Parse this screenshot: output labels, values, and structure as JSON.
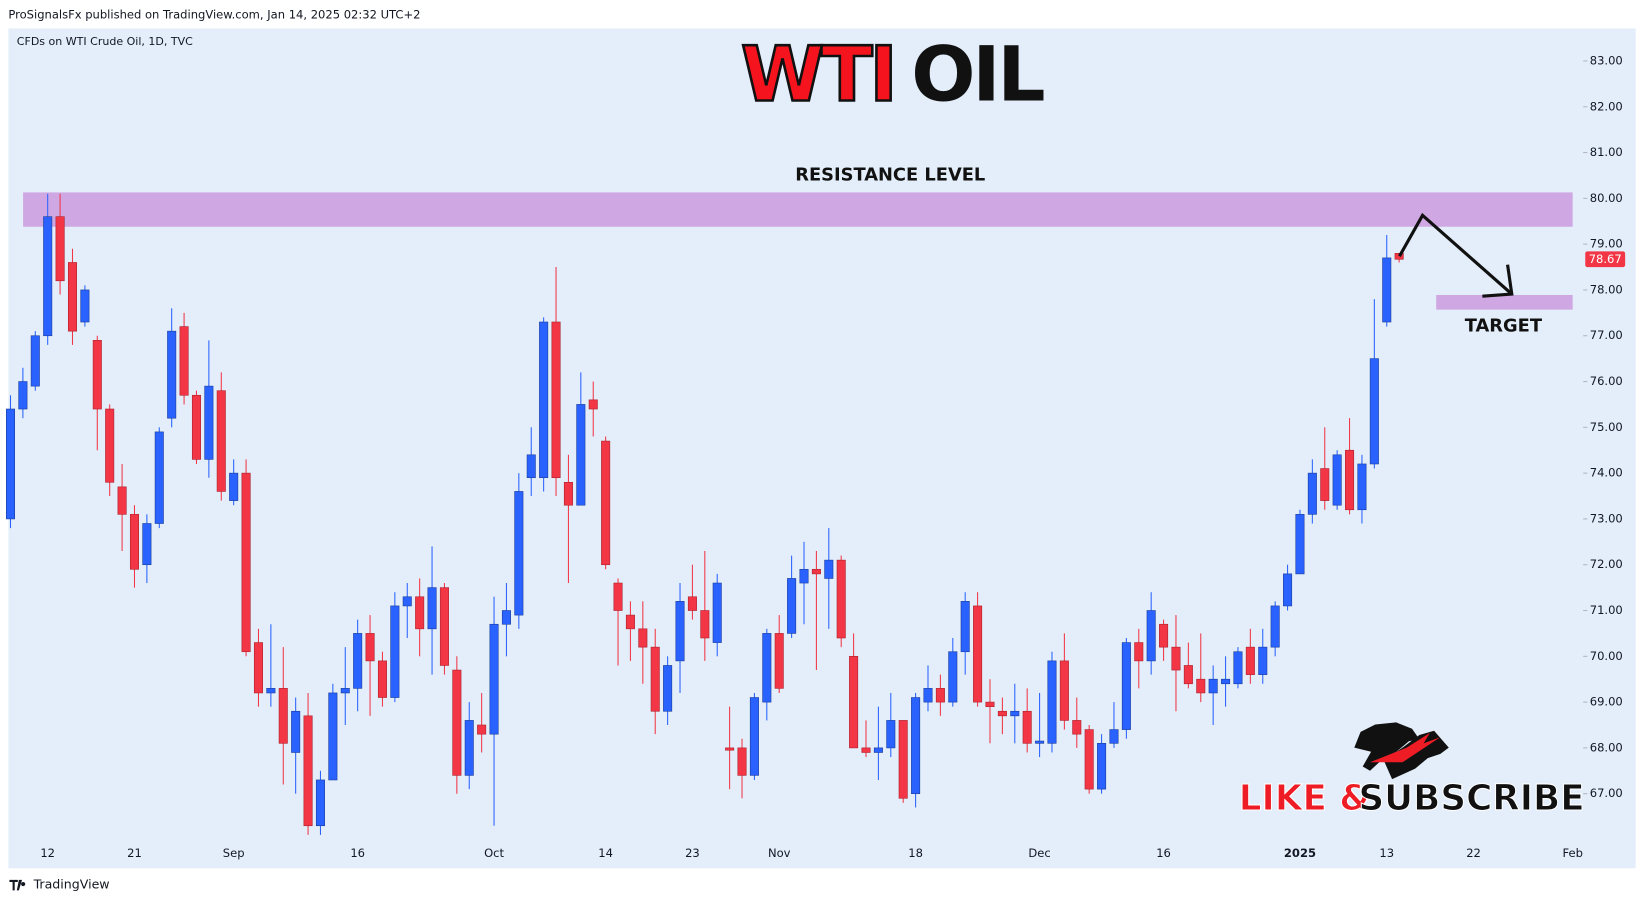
{
  "header": "ProSignalsFx published on TradingView.com, Jan 14, 2025 02:32 UTC+2",
  "footer": "TradingView",
  "chart_data": {
    "type": "candlestick",
    "symbol": "CFDs on WTI Crude Oil, 1D, TVC",
    "title": [
      "WTI",
      "OIL"
    ],
    "title_colors": [
      "#f5141e",
      "#111111"
    ],
    "cta": [
      "LIKE &",
      "SUBSCRIBE"
    ],
    "cta_colors": [
      "#ee1c25",
      "#111111"
    ],
    "up_color": "#2962ff",
    "down_color": "#f23645",
    "zones": [
      {
        "label": "RESISTANCE LEVEL",
        "range": [
          79.38,
          80.13
        ],
        "color": "#cfa8e3"
      },
      {
        "label": "TARGET",
        "range": [
          77.57,
          77.89
        ],
        "color": "#cfa8e3"
      }
    ],
    "categories": [
      null,
      null,
      null,
      "12",
      null,
      null,
      null,
      null,
      null,
      null,
      "21",
      null,
      null,
      null,
      null,
      null,
      null,
      null,
      "Sep",
      null,
      null,
      null,
      null,
      null,
      null,
      null,
      null,
      null,
      "16",
      null,
      null,
      null,
      null,
      null,
      null,
      null,
      null,
      null,
      null,
      "Oct",
      null,
      null,
      null,
      null,
      null,
      null,
      null,
      null,
      "14",
      null,
      null,
      null,
      null,
      null,
      null,
      "23",
      null,
      null,
      null,
      null,
      null,
      null,
      "Nov",
      null,
      null,
      null,
      null,
      null,
      null,
      null,
      null,
      null,
      null,
      "18",
      null,
      null,
      null,
      null,
      null,
      null,
      null,
      null,
      null,
      "Dec",
      null,
      null,
      null,
      null,
      null,
      null,
      null,
      null,
      null,
      "16",
      null,
      null,
      null,
      null,
      null,
      null,
      null,
      null,
      null,
      null,
      "2025",
      null,
      null,
      null,
      null,
      null,
      null,
      "13",
      null,
      null,
      null,
      null,
      null,
      null,
      "22",
      null,
      null,
      null,
      null,
      null,
      null,
      null,
      "Feb"
    ],
    "open": [
      73.0,
      75.4,
      75.9,
      77.0,
      79.6,
      78.6,
      77.3,
      76.9,
      75.4,
      73.7,
      73.1,
      72.0,
      72.9,
      75.2,
      77.2,
      75.7,
      74.3,
      75.8,
      73.4,
      74.0,
      70.3,
      69.2,
      69.3,
      67.9,
      68.7,
      66.3,
      67.3,
      69.2,
      69.3,
      70.5,
      69.9,
      69.1,
      71.1,
      71.3,
      70.6,
      71.5,
      69.7,
      67.4,
      68.5,
      68.3,
      70.7,
      70.9,
      73.9,
      73.9,
      77.3,
      73.8,
      73.3,
      75.6,
      74.7,
      71.6,
      70.9,
      70.6,
      70.2,
      68.8,
      69.9,
      71.3,
      71.0,
      70.3,
      68.0,
      68.0,
      67.4,
      69.0,
      70.5,
      70.5,
      71.6,
      71.9,
      71.7,
      72.1,
      70.0,
      68.0,
      67.9,
      68.0,
      68.6,
      67.0,
      69.0,
      69.3,
      69.0,
      70.1,
      71.1,
      69.0,
      68.8,
      68.7,
      68.8,
      68.1,
      68.1,
      69.9,
      68.6,
      68.4,
      67.1,
      68.1,
      68.4,
      70.3,
      69.9,
      70.7,
      70.2,
      69.8,
      69.5,
      69.2,
      69.4,
      69.4,
      70.2,
      69.6,
      70.2,
      71.1,
      71.8,
      73.1,
      74.1,
      73.3,
      74.5,
      73.2,
      74.2,
      77.3,
      78.8,
      null,
      null,
      null,
      null,
      null,
      null,
      null,
      null,
      null,
      null,
      null,
      null,
      null,
      null
    ],
    "high": [
      75.7,
      76.3,
      77.1,
      80.1,
      80.1,
      78.9,
      78.1,
      77.0,
      75.5,
      74.2,
      73.3,
      73.1,
      75.0,
      77.6,
      77.5,
      75.8,
      76.9,
      76.2,
      74.3,
      74.3,
      70.6,
      70.7,
      70.2,
      69.1,
      69.2,
      67.5,
      69.4,
      70.2,
      70.8,
      70.9,
      70.1,
      71.4,
      71.6,
      71.7,
      72.4,
      71.6,
      70.0,
      69.0,
      69.2,
      71.3,
      71.6,
      74.0,
      75.0,
      77.4,
      78.5,
      74.4,
      76.2,
      76.0,
      74.8,
      71.7,
      71.2,
      71.2,
      70.6,
      70.0,
      71.6,
      72.0,
      72.3,
      71.8,
      68.9,
      68.2,
      69.2,
      70.6,
      70.9,
      72.2,
      72.5,
      72.3,
      72.8,
      72.2,
      70.5,
      68.6,
      68.9,
      69.2,
      68.6,
      69.2,
      69.8,
      69.6,
      70.4,
      71.4,
      71.4,
      69.5,
      69.1,
      69.4,
      69.3,
      69.2,
      70.1,
      70.5,
      69.1,
      68.5,
      68.3,
      69.0,
      70.4,
      70.6,
      71.4,
      70.8,
      70.9,
      70.3,
      70.5,
      69.8,
      70.0,
      70.2,
      70.6,
      70.6,
      71.2,
      72.0,
      73.2,
      74.3,
      75.0,
      74.5,
      75.2,
      74.4,
      77.8,
      79.2,
      78.8,
      null,
      null,
      null,
      null,
      null,
      null,
      null,
      null,
      null,
      null,
      null,
      null,
      null,
      null
    ],
    "low": [
      72.8,
      75.2,
      75.8,
      76.8,
      77.9,
      76.8,
      77.2,
      74.5,
      73.5,
      72.3,
      71.5,
      71.6,
      72.8,
      75.0,
      75.5,
      74.2,
      73.9,
      73.4,
      73.3,
      70.0,
      68.9,
      68.9,
      67.2,
      67.0,
      66.1,
      66.1,
      67.3,
      68.5,
      68.8,
      68.7,
      68.9,
      69.0,
      70.4,
      70.0,
      69.6,
      69.6,
      67.0,
      67.1,
      67.9,
      66.3,
      70.0,
      70.6,
      73.5,
      73.6,
      73.5,
      71.6,
      73.3,
      74.8,
      71.9,
      69.8,
      69.9,
      69.4,
      68.3,
      68.5,
      69.2,
      70.8,
      69.9,
      70.0,
      67.1,
      66.9,
      67.3,
      68.6,
      69.2,
      70.4,
      70.7,
      69.7,
      70.6,
      70.2,
      68.0,
      67.8,
      67.3,
      67.8,
      66.8,
      66.7,
      68.8,
      68.7,
      68.9,
      69.6,
      68.9,
      68.1,
      68.3,
      68.1,
      67.9,
      67.8,
      67.9,
      68.4,
      68.0,
      67.0,
      67.0,
      68.0,
      68.2,
      69.3,
      69.6,
      69.9,
      68.8,
      69.3,
      69.0,
      68.5,
      68.9,
      69.3,
      69.4,
      69.4,
      70.0,
      71.0,
      71.8,
      72.9,
      73.2,
      73.2,
      73.1,
      72.9,
      74.1,
      77.2,
      78.6,
      null,
      null,
      null,
      null,
      null,
      null,
      null,
      null,
      null,
      null,
      null,
      null,
      null,
      null
    ],
    "close": [
      75.4,
      76.0,
      77.0,
      79.6,
      78.2,
      77.1,
      78.0,
      75.4,
      73.8,
      73.1,
      71.9,
      72.9,
      74.9,
      77.1,
      75.7,
      74.3,
      75.9,
      73.6,
      74.0,
      70.1,
      69.2,
      69.3,
      68.1,
      68.8,
      66.3,
      67.3,
      69.2,
      69.3,
      70.5,
      69.9,
      69.1,
      71.1,
      71.3,
      70.6,
      71.5,
      69.8,
      67.4,
      68.6,
      68.3,
      70.7,
      71.0,
      73.6,
      74.4,
      77.3,
      73.9,
      73.3,
      75.5,
      75.4,
      72.0,
      71.0,
      70.6,
      70.2,
      68.8,
      69.8,
      71.2,
      71.0,
      70.4,
      71.6,
      67.95,
      67.4,
      69.1,
      70.5,
      69.3,
      71.7,
      71.9,
      71.8,
      72.1,
      70.4,
      68.0,
      67.9,
      68.0,
      68.6,
      66.9,
      69.1,
      69.3,
      69.0,
      70.1,
      71.2,
      69.0,
      68.9,
      68.7,
      68.8,
      68.1,
      68.15,
      69.9,
      68.6,
      68.3,
      67.1,
      68.1,
      68.4,
      70.3,
      69.9,
      71.0,
      70.2,
      69.7,
      69.4,
      69.2,
      69.5,
      69.5,
      70.1,
      69.6,
      70.2,
      71.1,
      71.8,
      73.1,
      74.0,
      73.4,
      74.4,
      73.2,
      74.2,
      76.5,
      78.7,
      78.67,
      null,
      null,
      null,
      null,
      null,
      null,
      null,
      null,
      null,
      null,
      null,
      null,
      null,
      null
    ],
    "ylim": [
      65.37,
      83.71
    ],
    "yticks": [
      {
        "value": 67,
        "label": "67.00"
      },
      {
        "value": 68,
        "label": "68.00"
      },
      {
        "value": 69,
        "label": "69.00"
      },
      {
        "value": 70,
        "label": "70.00"
      },
      {
        "value": 71,
        "label": "71.00"
      },
      {
        "value": 72,
        "label": "72.00"
      },
      {
        "value": 73,
        "label": "73.00"
      },
      {
        "value": 74,
        "label": "74.00"
      },
      {
        "value": 75,
        "label": "75.00"
      },
      {
        "value": 76,
        "label": "76.00"
      },
      {
        "value": 77,
        "label": "77.00"
      },
      {
        "value": 78,
        "label": "78.00"
      },
      {
        "value": 79,
        "label": "79.00"
      },
      {
        "value": 80,
        "label": "80.00"
      },
      {
        "value": 81,
        "label": "81.00"
      },
      {
        "value": 82,
        "label": "82.00"
      },
      {
        "value": 83,
        "label": "83.00"
      }
    ],
    "grid": false
  }
}
